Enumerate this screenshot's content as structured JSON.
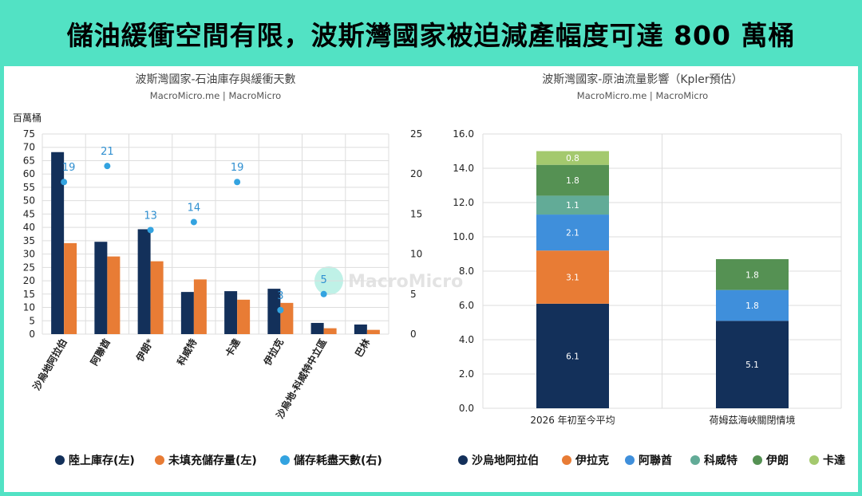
{
  "headline": "儲油緩衝空間有限，波斯灣國家被迫減產幅度可達 800 萬桶",
  "chart_data": [
    {
      "type": "bar+scatter",
      "title": "波斯灣國家-石油庫存與緩衝天數",
      "subtitle": "MacroMicro.me | MacroMicro",
      "ylabel": "百萬桶",
      "ylim": [
        0,
        75
      ],
      "y2lim": [
        0,
        25
      ],
      "grid": true,
      "yticks": [
        0,
        5,
        10,
        15,
        20,
        25,
        30,
        35,
        40,
        45,
        50,
        55,
        60,
        65,
        70,
        75
      ],
      "y2ticks": [
        0,
        5,
        10,
        15,
        20,
        25
      ],
      "categories": [
        "沙烏地阿拉伯",
        "阿聯酋",
        "伊朗*",
        "科威特",
        "卡達",
        "伊拉克",
        "沙烏地-科威特中立區",
        "巴林"
      ],
      "series": [
        {
          "name": "陸上庫存(左)",
          "color": "#13305a",
          "axis": "left",
          "values": [
            68.2,
            34.6,
            39.3,
            15.8,
            16.1,
            17.0,
            4.2,
            3.6
          ]
        },
        {
          "name": "未填充儲存量(左)",
          "color": "#e87c35",
          "axis": "left",
          "values": [
            34.1,
            29.1,
            27.3,
            20.5,
            12.9,
            11.7,
            2.2,
            1.6
          ]
        },
        {
          "name": "儲存耗盡天數(右)",
          "color": "#33a3e0",
          "axis": "right",
          "values": [
            19,
            21,
            13,
            14,
            19,
            3,
            5,
            null
          ]
        }
      ],
      "legend": "bottom"
    },
    {
      "type": "stacked-bar",
      "title": "波斯灣國家-原油流量影響（Kpler預估）",
      "subtitle": "MacroMicro.me | MacroMicro",
      "ylim": [
        0,
        16
      ],
      "yticks": [
        "0.0",
        "2.0",
        "4.0",
        "6.0",
        "8.0",
        "10.0",
        "12.0",
        "14.0",
        "16.0"
      ],
      "grid": true,
      "categories": [
        "2026 年初至今平均",
        "荷姆茲海峽關閉情境"
      ],
      "series": [
        {
          "name": "沙烏地阿拉伯",
          "color": "#13305a",
          "values": [
            6.1,
            5.1
          ]
        },
        {
          "name": "伊拉克",
          "color": "#e87c35",
          "values": [
            3.1,
            null
          ]
        },
        {
          "name": "阿聯酋",
          "color": "#3f8fdb",
          "values": [
            2.1,
            1.8
          ]
        },
        {
          "name": "科威特",
          "color": "#62ab97",
          "values": [
            1.1,
            null
          ]
        },
        {
          "name": "伊朗",
          "color": "#559153",
          "values": [
            1.8,
            1.8
          ]
        },
        {
          "name": "卡達",
          "color": "#a4c96e",
          "values": [
            0.8,
            null
          ]
        }
      ],
      "legend": "bottom"
    }
  ],
  "watermark": "MacroMicro"
}
